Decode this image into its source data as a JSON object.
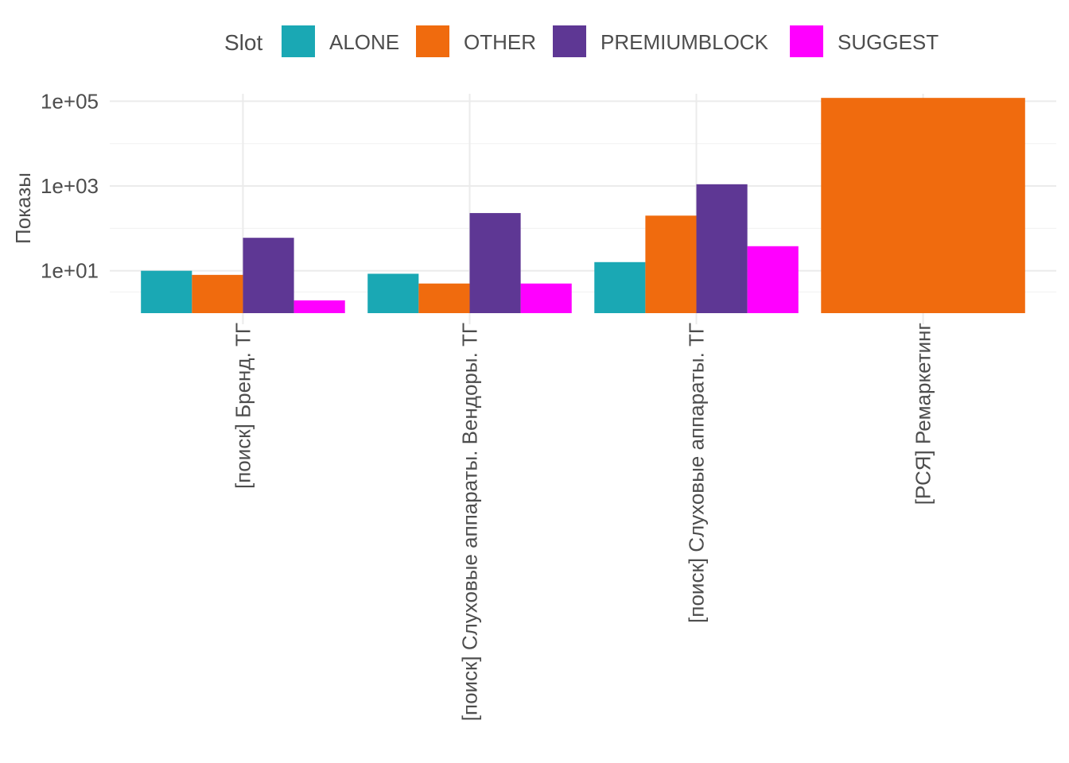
{
  "chart_data": {
    "type": "bar",
    "ylabel": "Показы",
    "xlabel": "",
    "y_scale": "log10",
    "ylim": [
      1,
      150000
    ],
    "y_ticks": [
      {
        "value": 10,
        "label": "1e+01"
      },
      {
        "value": 1000,
        "label": "1e+03"
      },
      {
        "value": 100000,
        "label": "1e+05"
      }
    ],
    "legend": {
      "title": "Slot",
      "position": "top"
    },
    "categories": [
      "[поиск] Бренд. ТГ",
      "[поиск] Слуховые аппараты. Вендоры. ТГ",
      "[поиск] Слуховые аппараты. ТГ",
      "[РСЯ] Ремаркетинг"
    ],
    "series": [
      {
        "name": "ALONE",
        "color": "#1aa8b4",
        "values": [
          10,
          8.5,
          16,
          null
        ]
      },
      {
        "name": "OTHER",
        "color": "#f06b0e",
        "values": [
          8,
          5,
          200,
          120000
        ]
      },
      {
        "name": "PREMIUMBLOCK",
        "color": "#5e3794",
        "values": [
          60,
          230,
          1100,
          null
        ]
      },
      {
        "name": "SUGGEST",
        "color": "#ff00ff",
        "values": [
          2,
          5,
          38,
          null
        ]
      }
    ],
    "grid": true
  }
}
